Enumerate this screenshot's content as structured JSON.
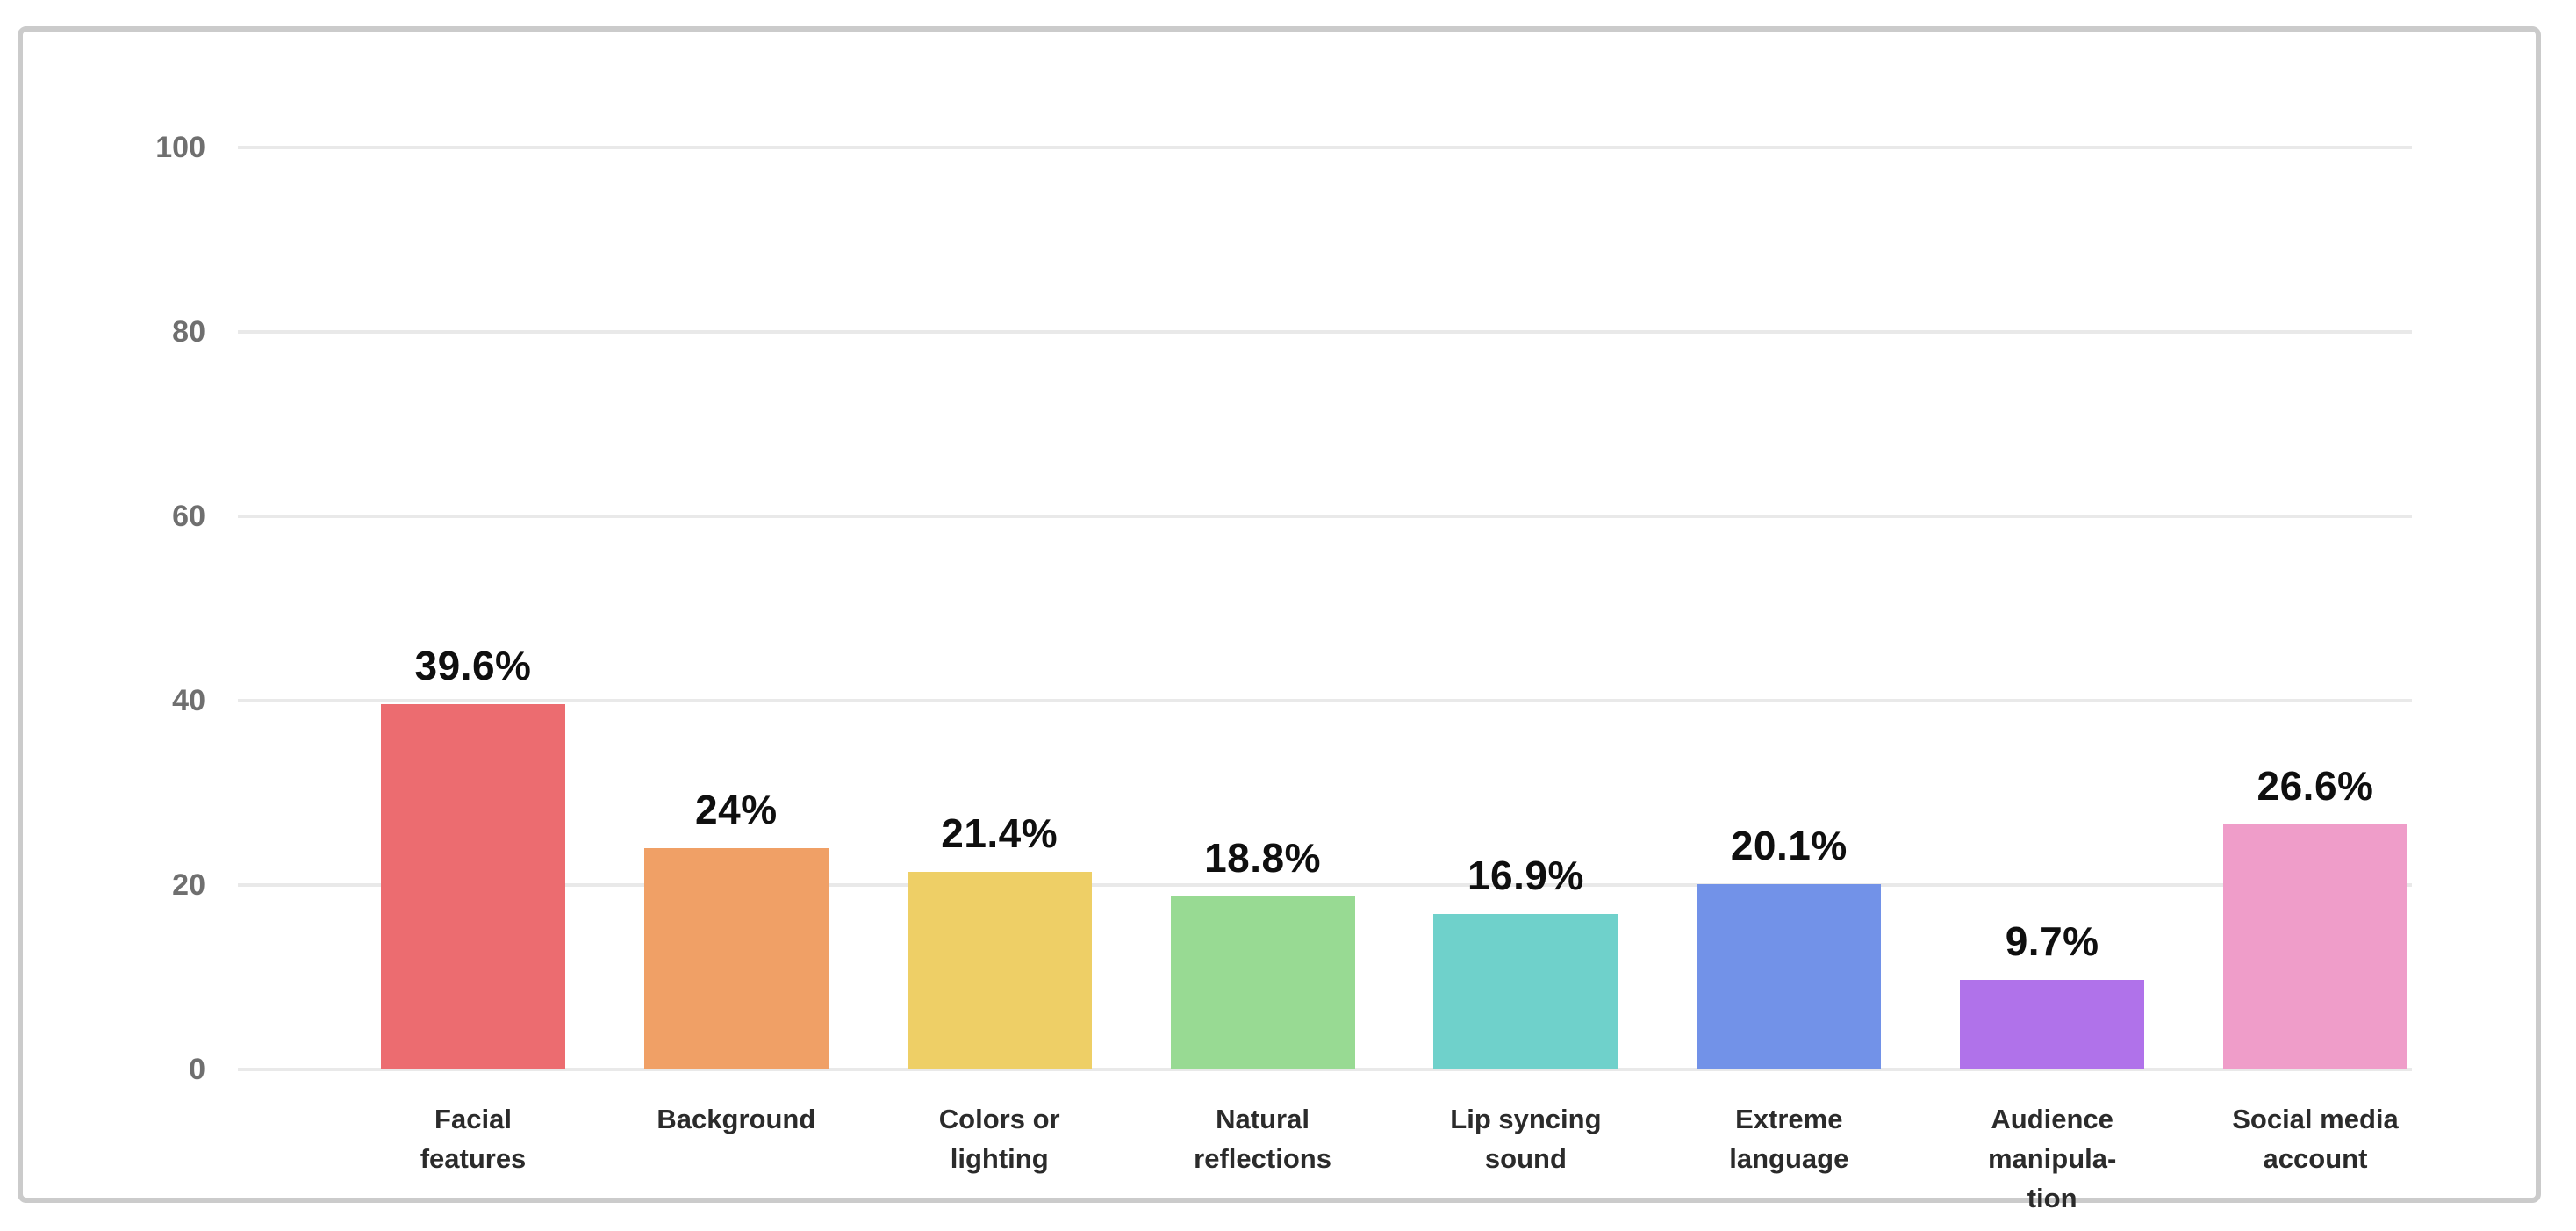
{
  "chart_data": {
    "type": "bar",
    "title": "",
    "xlabel": "",
    "ylabel": "",
    "categories": [
      "Facial features",
      "Background",
      "Colors or lighting",
      "Natural reflections",
      "Lip syncing sound",
      "Extreme language",
      "Audience manipulation",
      "Social media account"
    ],
    "category_label_lines": [
      [
        "Facial",
        "features"
      ],
      [
        "Background"
      ],
      [
        "Colors or",
        "lighting"
      ],
      [
        "Natural",
        "reflections"
      ],
      [
        "Lip syncing",
        "sound"
      ],
      [
        "Extreme",
        "language"
      ],
      [
        "Audience",
        "manipula-",
        "tion"
      ],
      [
        "Social media",
        "account"
      ]
    ],
    "values": [
      39.6,
      24,
      21.4,
      18.8,
      16.9,
      20.1,
      9.7,
      26.6
    ],
    "value_labels": [
      "39.6%",
      "24%",
      "21.4%",
      "18.8%",
      "16.9%",
      "20.1%",
      "9.7%",
      "26.6%"
    ],
    "bar_colors": [
      "#EC6C70",
      "#F0A066",
      "#EECF66",
      "#98DA93",
      "#6FD1CB",
      "#7292E8",
      "#B072EA",
      "#EF9DC9"
    ],
    "ylim": [
      0,
      100
    ],
    "yticks": [
      0,
      20,
      40,
      60,
      80,
      100
    ],
    "ytick_labels": [
      "0",
      "20",
      "40",
      "60",
      "80",
      "100"
    ],
    "grid": "horizontal",
    "legend": "none"
  },
  "style": {
    "page_background": "#FFFFFF",
    "frame_border_color": "#CBCBCB",
    "gridline_color": "#E9E9E9",
    "tick_label_color": "#6F6F6F",
    "category_label_color": "#2B2B2B",
    "value_label_color": "#0F0F0F"
  }
}
